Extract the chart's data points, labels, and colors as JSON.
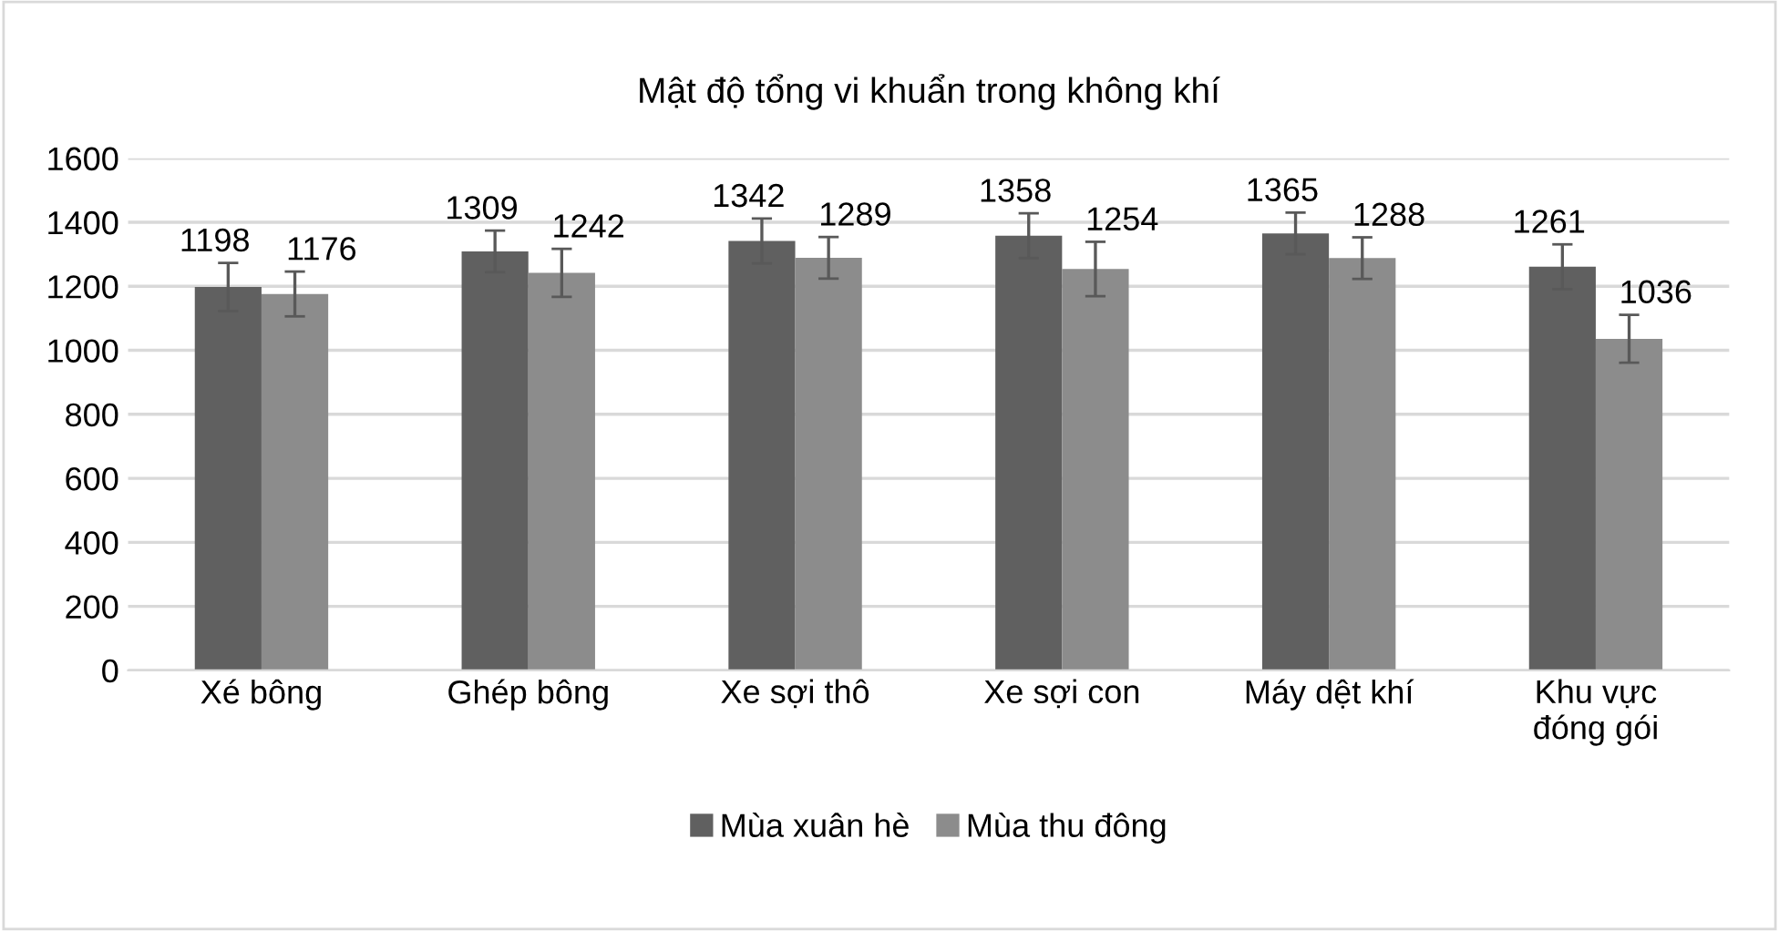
{
  "chart_data": {
    "type": "bar",
    "title": "Mật độ tổng vi khuẩn trong không khí",
    "categories": [
      "Xé bông",
      "Ghép bông",
      "Xe sợi thô",
      "Xe sợi con",
      "Máy dệt khí",
      "Khu vực\nđóng gói"
    ],
    "series": [
      {
        "name": "Mùa xuân hè",
        "color": "#606060",
        "values": [
          1198,
          1309,
          1342,
          1358,
          1365,
          1261
        ],
        "errors": [
          75,
          65,
          70,
          70,
          65,
          70
        ]
      },
      {
        "name": "Mùa thu đông",
        "color": "#8c8c8c",
        "values": [
          1176,
          1242,
          1289,
          1254,
          1288,
          1036
        ],
        "errors": [
          70,
          75,
          65,
          85,
          65,
          75
        ]
      }
    ],
    "ylim": [
      0,
      1600
    ],
    "yticks": [
      0,
      200,
      400,
      600,
      800,
      1000,
      1200,
      1400,
      1600
    ],
    "grid": "y",
    "legend": "bottom",
    "data_labels": true
  }
}
